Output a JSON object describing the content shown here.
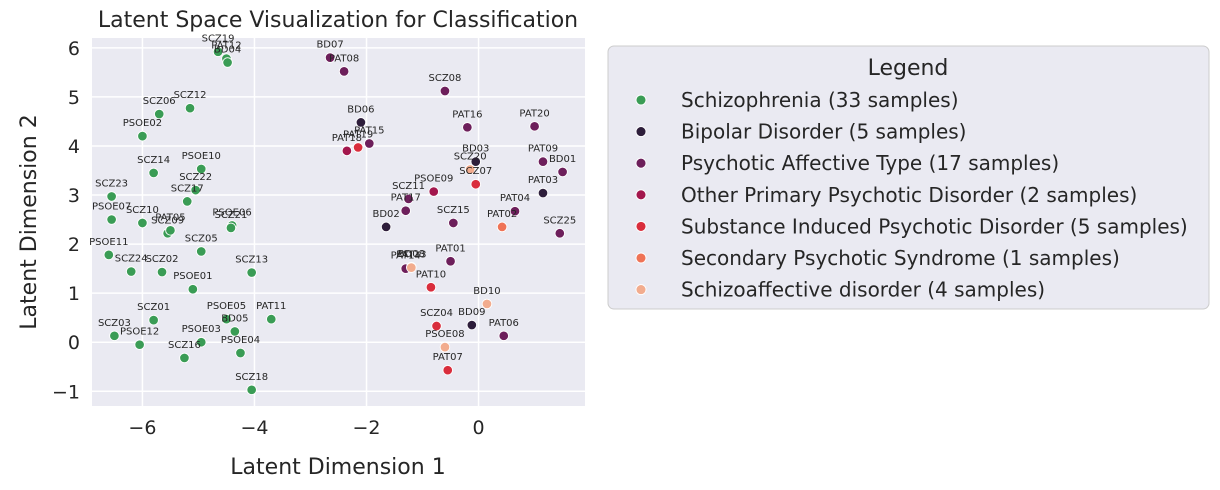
{
  "chart_data": {
    "type": "scatter",
    "title": "Latent Space Visualization for Classification",
    "xlabel": "Latent Dimension 1",
    "ylabel": "Latent Dimension 2",
    "xlim": [
      -6.9,
      1.9
    ],
    "ylim": [
      -1.3,
      6.2
    ],
    "xticks": [
      -6,
      -4,
      -2,
      0
    ],
    "yticks": [
      -1,
      0,
      1,
      2,
      3,
      4,
      5,
      6
    ],
    "grid": true,
    "legend": {
      "title": "Legend",
      "placement": "outside-upper-right"
    },
    "series": [
      {
        "name": "Schizophrenia (33 samples)",
        "color": "#3a9c55",
        "points": [
          {
            "label": "SCZ19",
            "x": -4.65,
            "y": 5.92
          },
          {
            "label": "PAT12",
            "x": -4.5,
            "y": 5.78
          },
          {
            "label": "BD04",
            "x": -4.48,
            "y": 5.7
          },
          {
            "label": "SCZ12",
            "x": -5.15,
            "y": 4.77
          },
          {
            "label": "SCZ06",
            "x": -5.7,
            "y": 4.65
          },
          {
            "label": "PSOE02",
            "x": -6.0,
            "y": 4.2
          },
          {
            "label": "PSOE10",
            "x": -4.95,
            "y": 3.53
          },
          {
            "label": "SCZ14",
            "x": -5.8,
            "y": 3.45
          },
          {
            "label": "SCZ22",
            "x": -5.05,
            "y": 3.1
          },
          {
            "label": "SCZ17",
            "x": -5.2,
            "y": 2.87
          },
          {
            "label": "SCZ23",
            "x": -6.55,
            "y": 2.97
          },
          {
            "label": "PSOE07",
            "x": -6.55,
            "y": 2.5
          },
          {
            "label": "SCZ10",
            "x": -6.0,
            "y": 2.43
          },
          {
            "label": "PSOE06",
            "x": -4.4,
            "y": 2.38
          },
          {
            "label": "SCZ21",
            "x": -4.42,
            "y": 2.33
          },
          {
            "label": "SCZ09",
            "x": -5.55,
            "y": 2.22
          },
          {
            "label": "PAT05",
            "x": -5.5,
            "y": 2.28
          },
          {
            "label": "SCZ05",
            "x": -4.95,
            "y": 1.85
          },
          {
            "label": "PSOE11",
            "x": -6.6,
            "y": 1.78
          },
          {
            "label": "SCZ24",
            "x": -6.2,
            "y": 1.44
          },
          {
            "label": "SCZ02",
            "x": -5.65,
            "y": 1.43
          },
          {
            "label": "SCZ13",
            "x": -4.05,
            "y": 1.42
          },
          {
            "label": "PSOE01",
            "x": -5.1,
            "y": 1.08
          },
          {
            "label": "PAT11",
            "x": -3.7,
            "y": 0.47
          },
          {
            "label": "PSOE05",
            "x": -4.5,
            "y": 0.47
          },
          {
            "label": "SCZ01",
            "x": -5.8,
            "y": 0.45
          },
          {
            "label": "BD05",
            "x": -4.35,
            "y": 0.22
          },
          {
            "label": "SCZ03",
            "x": -6.5,
            "y": 0.13
          },
          {
            "label": "PSOE03",
            "x": -4.95,
            "y": 0.0
          },
          {
            "label": "PSOE04",
            "x": -4.25,
            "y": -0.22
          },
          {
            "label": "PSOE12",
            "x": -6.05,
            "y": -0.05
          },
          {
            "label": "SCZ16",
            "x": -5.25,
            "y": -0.32
          },
          {
            "label": "SCZ18",
            "x": -4.05,
            "y": -0.97
          }
        ]
      },
      {
        "name": "Bipolar Disorder (5 samples)",
        "color": "#2e1e3b",
        "points": [
          {
            "label": "BD06",
            "x": -2.1,
            "y": 4.48
          },
          {
            "label": "BD03",
            "x": -0.05,
            "y": 3.68
          },
          {
            "label": "PAT03",
            "x": 1.15,
            "y": 3.04
          },
          {
            "label": "BD02",
            "x": -1.65,
            "y": 2.35
          },
          {
            "label": "BD09",
            "x": -0.12,
            "y": 0.35
          }
        ]
      },
      {
        "name": "Psychotic Affective Type (17 samples)",
        "color": "#6d1f5b",
        "points": [
          {
            "label": "BD07",
            "x": -2.65,
            "y": 5.8
          },
          {
            "label": "PAT08",
            "x": -2.4,
            "y": 5.52
          },
          {
            "label": "SCZ08",
            "x": -0.6,
            "y": 5.12
          },
          {
            "label": "PAT16",
            "x": -0.2,
            "y": 4.38
          },
          {
            "label": "PAT20",
            "x": 1.0,
            "y": 4.4
          },
          {
            "label": "PAT15",
            "x": -1.95,
            "y": 4.05
          },
          {
            "label": "PAT09",
            "x": 1.15,
            "y": 3.68
          },
          {
            "label": "BD01",
            "x": 1.5,
            "y": 3.47
          },
          {
            "label": "SCZ11",
            "x": -1.25,
            "y": 2.92
          },
          {
            "label": "PAT17",
            "x": -1.3,
            "y": 2.68
          },
          {
            "label": "PAT04",
            "x": 0.65,
            "y": 2.67
          },
          {
            "label": "SCZ15",
            "x": -0.45,
            "y": 2.43
          },
          {
            "label": "SCZ25",
            "x": 1.45,
            "y": 2.22
          },
          {
            "label": "PAT01",
            "x": -0.5,
            "y": 1.65
          },
          {
            "label": "PAT14",
            "x": -1.3,
            "y": 1.5
          },
          {
            "label": "BD08",
            "x": -1.2,
            "y": 1.53
          },
          {
            "label": "PAT06",
            "x": 0.45,
            "y": 0.13
          }
        ]
      },
      {
        "name": "Other Primary Psychotic Disorder (2 samples)",
        "color": "#a3174d",
        "points": [
          {
            "label": "PAT18",
            "x": -2.35,
            "y": 3.9
          },
          {
            "label": "PSOE09",
            "x": -0.8,
            "y": 3.07
          }
        ]
      },
      {
        "name": "Substance Induced Psychotic Disorder (5 samples)",
        "color": "#d92d3c",
        "points": [
          {
            "label": "PAT19",
            "x": -2.15,
            "y": 3.97
          },
          {
            "label": "SCZ07",
            "x": -0.05,
            "y": 3.22
          },
          {
            "label": "PAT10",
            "x": -0.85,
            "y": 1.12
          },
          {
            "label": "SCZ04",
            "x": -0.75,
            "y": 0.33
          },
          {
            "label": "PAT07",
            "x": -0.55,
            "y": -0.57
          }
        ]
      },
      {
        "name": "Secondary Psychotic Syndrome (1 samples)",
        "color": "#ef7356",
        "points": [
          {
            "label": "PAT02",
            "x": 0.42,
            "y": 2.35
          }
        ]
      },
      {
        "name": "Schizoaffective disorder (4 samples)",
        "color": "#f2ac8e",
        "points": [
          {
            "label": "SCZ20",
            "x": -0.15,
            "y": 3.52
          },
          {
            "label": "PAT13",
            "x": -1.2,
            "y": 1.52
          },
          {
            "label": "BD10",
            "x": 0.15,
            "y": 0.78
          },
          {
            "label": "PSOE08",
            "x": -0.6,
            "y": -0.1
          }
        ]
      }
    ]
  }
}
